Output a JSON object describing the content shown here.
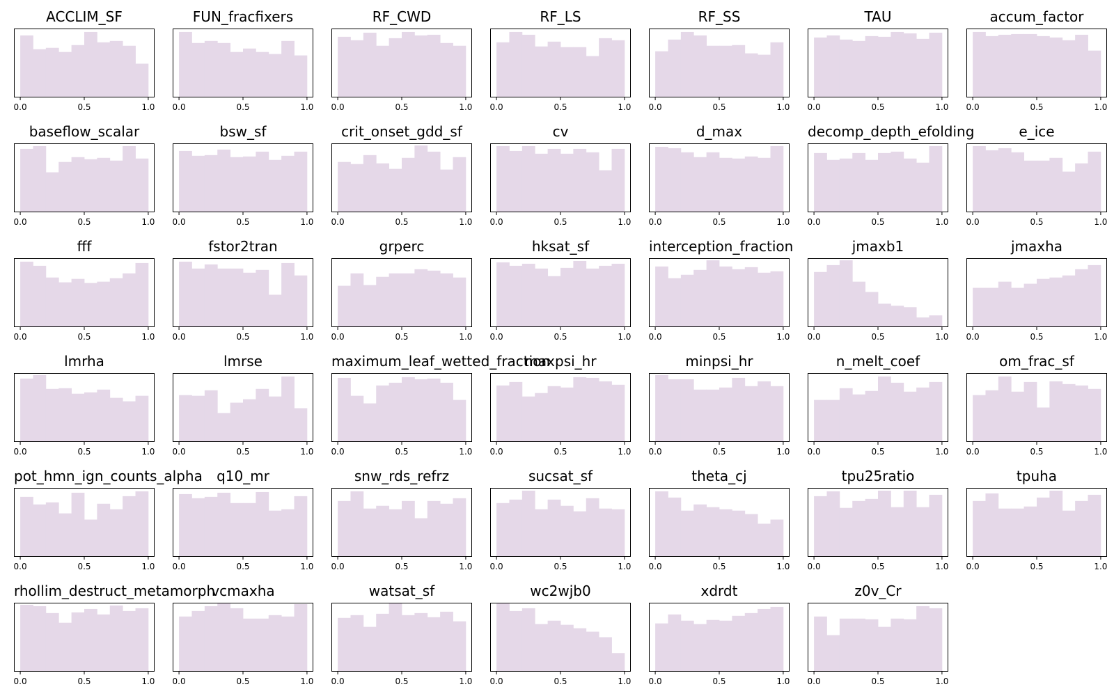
{
  "chart_data": {
    "type": "histogram-grid",
    "bar_color": "#e5d8e8",
    "xlim": [
      0.0,
      1.0
    ],
    "xticks": [
      "0.0",
      "0.5",
      "1.0"
    ],
    "ymax": 10,
    "panels": [
      {
        "title": "ACCLIM_SF",
        "values": [
          9,
          7,
          7.2,
          6.6,
          7.6,
          9.5,
          8,
          8.2,
          7.5,
          4.9
        ]
      },
      {
        "title": "FUN_fracfixers",
        "values": [
          9.5,
          7.9,
          8.2,
          7.9,
          6.6,
          7.1,
          6.6,
          6.3,
          8.2,
          6.1
        ]
      },
      {
        "title": "RF_CWD",
        "values": [
          8.8,
          8.3,
          9.4,
          7.5,
          8.6,
          9.5,
          9,
          9.1,
          7.9,
          7.5
        ]
      },
      {
        "title": "RF_LS",
        "values": [
          8,
          9.5,
          9.1,
          7.4,
          8.1,
          7.3,
          7.3,
          6,
          8.6,
          8.3
        ]
      },
      {
        "title": "RF_SS",
        "values": [
          6.7,
          8.4,
          9.5,
          9,
          7.5,
          7.5,
          7.6,
          6.4,
          6.2,
          8
        ]
      },
      {
        "title": "TAU",
        "values": [
          8.7,
          9,
          8.4,
          8.2,
          8.9,
          8.8,
          9.5,
          9.3,
          8.5,
          9.4
        ]
      },
      {
        "title": "accum_factor",
        "values": [
          9.5,
          8.9,
          9.1,
          9.2,
          9.2,
          8.9,
          8.7,
          8.3,
          9.1,
          6.8
        ]
      },
      {
        "title": "baseflow_scalar",
        "values": [
          9.2,
          9.6,
          5.8,
          7.3,
          8,
          7.7,
          7.9,
          7.5,
          9.6,
          7.8
        ]
      },
      {
        "title": "bsw_sf",
        "values": [
          8.9,
          8.2,
          8.3,
          9.1,
          8,
          8.1,
          8.8,
          7.6,
          8.2,
          8.8
        ]
      },
      {
        "title": "crit_onset_gdd_sf",
        "values": [
          7.3,
          7,
          8.3,
          7.1,
          6.3,
          7.9,
          9.7,
          8.8,
          6.2,
          8
        ]
      },
      {
        "title": "cv",
        "values": [
          9.6,
          8.9,
          9.6,
          8.5,
          9.2,
          8.5,
          9.2,
          8.7,
          6.1,
          9.2
        ]
      },
      {
        "title": "d_max",
        "values": [
          9.5,
          9.3,
          8.7,
          8,
          8.7,
          7.9,
          7.8,
          8.1,
          7.9,
          9.6
        ]
      },
      {
        "title": "decomp_depth_efolding",
        "values": [
          8.6,
          7.6,
          7.8,
          8.6,
          7.6,
          8.6,
          8.8,
          7.8,
          7.2,
          9.6
        ]
      },
      {
        "title": "e_ice",
        "values": [
          9.6,
          9,
          9.3,
          8.7,
          7.5,
          7.5,
          7.9,
          5.9,
          7.1,
          8.8
        ]
      },
      {
        "title": "fff",
        "values": [
          9.5,
          8.9,
          7.2,
          6.5,
          7,
          6.4,
          6.6,
          7.1,
          7.8,
          9.3
        ]
      },
      {
        "title": "fstor2tran",
        "values": [
          9.5,
          8.5,
          9.1,
          8.5,
          8.5,
          7.9,
          8.3,
          4.7,
          9.3,
          7.5
        ]
      },
      {
        "title": "grperc",
        "values": [
          6,
          7.8,
          6.1,
          7.3,
          7.8,
          7.8,
          8.4,
          8.2,
          7.8,
          7.2
        ]
      },
      {
        "title": "hksat_sf",
        "values": [
          9.4,
          8.9,
          9.2,
          8.5,
          7.4,
          8.6,
          9.6,
          8.5,
          8.9,
          9.2
        ]
      },
      {
        "title": "interception_fraction",
        "values": [
          8.8,
          7.1,
          7.6,
          8.3,
          9.7,
          8.8,
          8.4,
          8.7,
          7.9,
          8.1
        ]
      },
      {
        "title": "jmaxb1",
        "values": [
          8,
          9,
          9.7,
          6.6,
          5.1,
          3.4,
          3.1,
          2.9,
          1.4,
          1.7
        ]
      },
      {
        "title": "jmaxha",
        "values": [
          5.7,
          5.7,
          6.6,
          5.7,
          6.3,
          7,
          7.2,
          7.5,
          8.4,
          9
        ]
      },
      {
        "title": "lmrha",
        "values": [
          9.2,
          9.7,
          7.7,
          7.8,
          7,
          7.2,
          7.6,
          6.4,
          5.9,
          6.7
        ]
      },
      {
        "title": "lmrse",
        "values": [
          6.8,
          6.7,
          7.5,
          4.2,
          5.7,
          6.2,
          7.7,
          6.6,
          9.5,
          4.9
        ]
      },
      {
        "title": "maximum_leaf_wetted_fraction",
        "values": [
          9.3,
          6.7,
          5.6,
          8.2,
          8.6,
          9.4,
          9.1,
          9.2,
          8.6,
          6.1
        ]
      },
      {
        "title": "maxpsi_hr",
        "values": [
          8.2,
          8.7,
          6.6,
          7.1,
          8.1,
          7.9,
          9.4,
          9.3,
          8.8,
          8.3
        ]
      },
      {
        "title": "minpsi_hr",
        "values": [
          9.7,
          9.1,
          9.1,
          7.6,
          7.6,
          7.9,
          9.3,
          8.1,
          8.8,
          8.1
        ]
      },
      {
        "title": "n_melt_coef",
        "values": [
          6.1,
          6.1,
          7.8,
          6.9,
          7.4,
          9.5,
          8.6,
          7.3,
          7.9,
          8.7
        ]
      },
      {
        "title": "om_frac_sf",
        "values": [
          6.8,
          7.5,
          9.5,
          7.3,
          8.7,
          5,
          8.8,
          8.4,
          8.2,
          7.7
        ]
      },
      {
        "title": "pot_hmn_ign_counts_alpha",
        "values": [
          8.7,
          7.6,
          7.9,
          6.3,
          9.3,
          5.4,
          7.7,
          6.9,
          8.8,
          9.5
        ]
      },
      {
        "title": "q10_mr",
        "values": [
          9.1,
          8.5,
          8.7,
          9.3,
          7.8,
          7.8,
          9.4,
          6.7,
          6.9,
          8.8
        ]
      },
      {
        "title": "snw_rds_refrz",
        "values": [
          8.1,
          9.5,
          7,
          7.4,
          6.9,
          8.1,
          5.6,
          8.1,
          7.7,
          8.5
        ]
      },
      {
        "title": "sucsat_sf",
        "values": [
          7.8,
          8.3,
          9.6,
          6.9,
          8.3,
          7.4,
          6.6,
          8.5,
          7,
          6.9
        ]
      },
      {
        "title": "theta_cj",
        "values": [
          9.5,
          8.6,
          6.7,
          7.6,
          7.2,
          6.9,
          6.7,
          6.2,
          4.8,
          5.4
        ]
      },
      {
        "title": "tpu25ratio",
        "values": [
          8.8,
          9.5,
          7.1,
          8.1,
          8.4,
          9.6,
          7.2,
          9.6,
          7.2,
          9
        ]
      },
      {
        "title": "tpuha",
        "values": [
          8.1,
          9.2,
          7,
          7,
          7.3,
          8.6,
          9.6,
          6.7,
          8.1,
          9
        ]
      },
      {
        "title": "rhollim_destruct_metamorph",
        "values": [
          9.7,
          9.5,
          8.5,
          7.1,
          8.6,
          9.1,
          8.3,
          9.6,
          8.8,
          9.2
        ]
      },
      {
        "title": "vcmaxha",
        "values": [
          8,
          8.8,
          9.5,
          10,
          9.2,
          7.7,
          7.7,
          8.2,
          8,
          9.8
        ]
      },
      {
        "title": "watsat_sf",
        "values": [
          7.8,
          8.2,
          6.5,
          8.4,
          10.1,
          8.2,
          8.5,
          7.9,
          8.7,
          7.3
        ]
      },
      {
        "title": "wc2wjb0",
        "values": [
          9.9,
          8.8,
          9.2,
          6.9,
          7.4,
          6.8,
          6.3,
          5.8,
          5,
          2.7
        ]
      },
      {
        "title": "xdrdt",
        "values": [
          7,
          8.3,
          7.4,
          6.9,
          7.5,
          7.4,
          8.1,
          8.5,
          9.1,
          9.4
        ]
      },
      {
        "title": "z0v_Cr",
        "values": [
          8,
          5.3,
          7.7,
          7.7,
          7.6,
          6.5,
          7.7,
          7.6,
          9.5,
          9.2
        ]
      }
    ]
  }
}
